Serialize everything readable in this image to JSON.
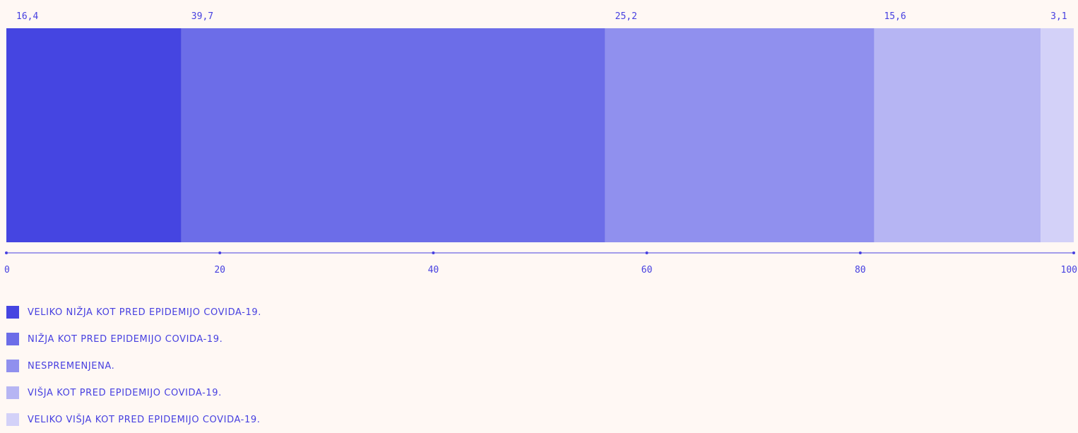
{
  "colors": {
    "background": "#fff8f4",
    "text": "#4740e0",
    "axis": "#4740e0"
  },
  "chart_data": {
    "type": "bar",
    "orientation": "horizontal-stacked",
    "title": "",
    "xlabel": "",
    "ylabel": "",
    "xlim": [
      0,
      100
    ],
    "x_ticks": [
      "0",
      "20",
      "40",
      "60",
      "80",
      "100"
    ],
    "grid": false,
    "legend_position": "bottom-left",
    "series": [
      {
        "name": "VELIKO NIŽJA KOT PRED EPIDEMIJO COVIDA-19.",
        "value": 16.4,
        "label": "16,4",
        "color": "#4545e1"
      },
      {
        "name": "NIŽJA KOT PRED EPIDEMIJO COVIDA-19.",
        "value": 39.7,
        "label": "39,7",
        "color": "#6c6de8"
      },
      {
        "name": "NESPREMENJENA.",
        "value": 25.2,
        "label": "25,2",
        "color": "#9090ee"
      },
      {
        "name": "VIŠJA KOT PRED EPIDEMIJO COVIDA-19.",
        "value": 15.6,
        "label": "15,6",
        "color": "#b6b5f3"
      },
      {
        "name": "VELIKO VIŠJA KOT PRED EPIDEMIJO COVIDA-19.",
        "value": 3.1,
        "label": "3,1",
        "color": "#d3d1f8"
      }
    ]
  }
}
